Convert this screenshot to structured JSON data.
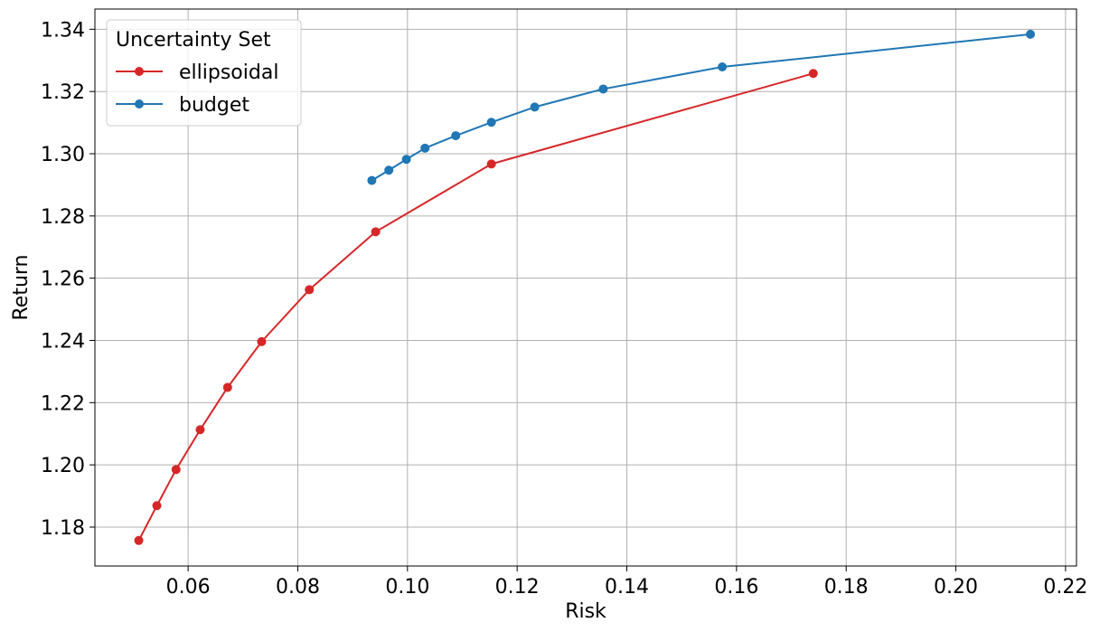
{
  "chart_data": {
    "type": "line",
    "title": "",
    "xlabel": "Risk",
    "ylabel": "Return",
    "xlim": [
      0.043,
      0.222
    ],
    "ylim": [
      1.1675,
      1.3465
    ],
    "xticks": [
      0.06,
      0.08,
      0.1,
      0.12,
      0.14,
      0.16,
      0.18,
      0.2,
      0.22
    ],
    "xtick_labels": [
      "0.06",
      "0.08",
      "0.10",
      "0.12",
      "0.14",
      "0.16",
      "0.18",
      "0.20",
      "0.22"
    ],
    "yticks": [
      1.18,
      1.2,
      1.22,
      1.24,
      1.26,
      1.28,
      1.3,
      1.32,
      1.34
    ],
    "ytick_labels": [
      "1.18",
      "1.20",
      "1.22",
      "1.24",
      "1.26",
      "1.28",
      "1.30",
      "1.32",
      "1.34"
    ],
    "grid": true,
    "legend": {
      "title": "Uncertainty Set",
      "placement": "top-left"
    },
    "series": [
      {
        "name": "ellipsoidal",
        "color": "#d62728",
        "marker": "circle",
        "x": [
          0.051,
          0.0543,
          0.0578,
          0.0622,
          0.0672,
          0.0734,
          0.0821,
          0.0942,
          0.1153,
          0.174
        ],
        "y": [
          1.1757,
          1.1869,
          1.1985,
          1.2113,
          1.2249,
          1.2396,
          1.2563,
          1.2749,
          1.2967,
          1.3258
        ]
      },
      {
        "name": "budget",
        "color": "#1f77b4",
        "marker": "circle",
        "x": [
          0.0935,
          0.0966,
          0.0998,
          0.1032,
          0.1088,
          0.1153,
          0.1232,
          0.1357,
          0.1574,
          0.2136
        ],
        "y": [
          1.2914,
          1.2947,
          1.2982,
          1.3018,
          1.3058,
          1.3101,
          1.315,
          1.3208,
          1.3279,
          1.3384
        ]
      }
    ]
  }
}
